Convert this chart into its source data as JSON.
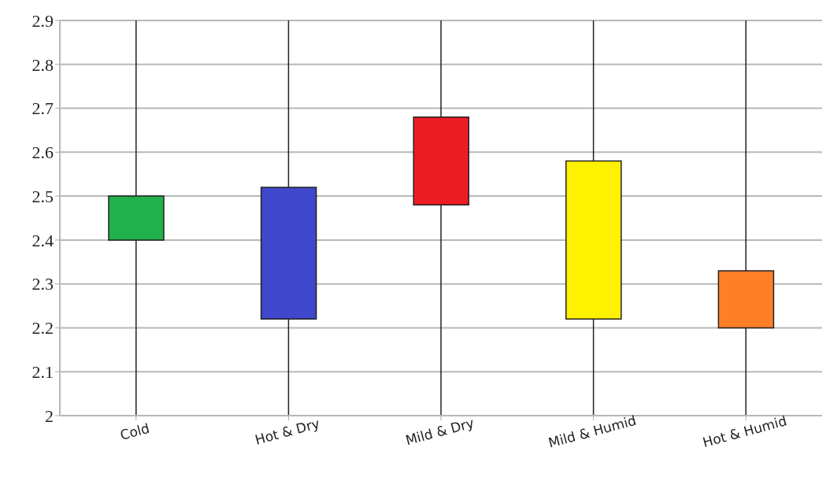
{
  "chart_data": {
    "type": "bar",
    "categories": [
      "Cold",
      "Hot & Dry",
      "Mild & Dry",
      "Mild & Humid",
      "Hot & Humid"
    ],
    "base": [
      2.4,
      2.22,
      2.48,
      2.22,
      2.2
    ],
    "values": [
      0.1,
      0.3,
      0.2,
      0.36,
      0.13
    ],
    "errors": [
      [
        2.0,
        2.9
      ],
      [
        2.0,
        2.9
      ],
      [
        2.0,
        2.9
      ],
      [
        2.0,
        2.9
      ],
      [
        2.0,
        2.9
      ]
    ],
    "colors": [
      "#22b04b",
      "#3f48cc",
      "#ed1c24",
      "#fff200",
      "#ff7f27"
    ],
    "ylim": [
      2,
      2.9
    ],
    "yticks": [
      2,
      2.1,
      2.2,
      2.3,
      2.4,
      2.5,
      2.6,
      2.7,
      2.8,
      2.9
    ],
    "grid": "y"
  }
}
